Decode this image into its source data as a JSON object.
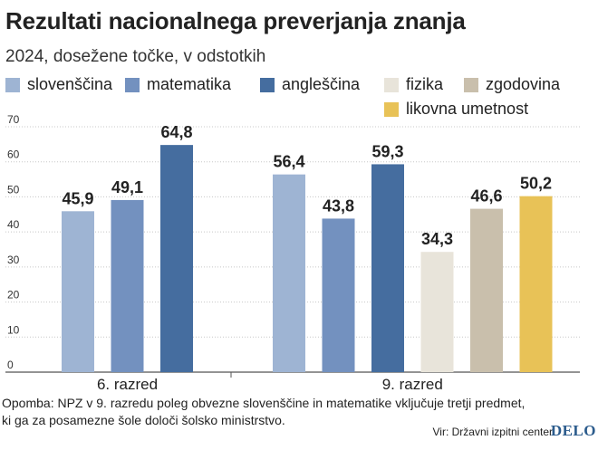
{
  "title": "Rezultati nacionalnega preverjanja znanja",
  "subtitle": "2024, dosežene točke, v odstotkih",
  "legend": [
    {
      "label": "slovenščina",
      "color": "#9eb4d3"
    },
    {
      "label": "matematika",
      "color": "#7391bf"
    },
    {
      "label": "angleščina",
      "color": "#456d9f"
    },
    {
      "label": "fizika",
      "color": "#e8e4da"
    },
    {
      "label": "zgodovina",
      "color": "#c9bfac"
    },
    {
      "label": "likovna umetnost",
      "color": "#e8c257"
    }
  ],
  "chart_data": {
    "type": "bar",
    "title": "Rezultati nacionalnega preverjanja znanja",
    "subtitle": "2024, dosežene točke, v odstotkih",
    "ylim": [
      0,
      70
    ],
    "yticks": [
      "0",
      "10",
      "20",
      "30",
      "40",
      "50",
      "60",
      "70"
    ],
    "grid": true,
    "groups": [
      {
        "label": "6. razred",
        "bars": [
          {
            "subject": "slovenščina",
            "value": 45.9,
            "label": "45,9"
          },
          {
            "subject": "matematika",
            "value": 49.1,
            "label": "49,1"
          },
          {
            "subject": "angleščina",
            "value": 64.8,
            "label": "64,8"
          }
        ]
      },
      {
        "label": "9. razred",
        "bars": [
          {
            "subject": "slovenščina",
            "value": 56.4,
            "label": "56,4"
          },
          {
            "subject": "matematika",
            "value": 43.8,
            "label": "43,8"
          },
          {
            "subject": "angleščina",
            "value": 59.3,
            "label": "59,3"
          },
          {
            "subject": "fizika",
            "value": 34.3,
            "label": "34,3"
          },
          {
            "subject": "zgodovina",
            "value": 46.6,
            "label": "46,6"
          },
          {
            "subject": "likovna umetnost",
            "value": 50.2,
            "label": "50,2"
          }
        ]
      }
    ]
  },
  "footnote": {
    "line1": "Opomba: NPZ v 9. razredu poleg obvezne slovenščine in matematike vključuje tretji predmet,",
    "line2": "ki ga za posamezne šole določi šolsko ministrstvo."
  },
  "source": "Vir: Državni izpitni center",
  "logo": "DELO",
  "colors": {
    "grid": "#c8c8c8",
    "axis": "#555555"
  }
}
